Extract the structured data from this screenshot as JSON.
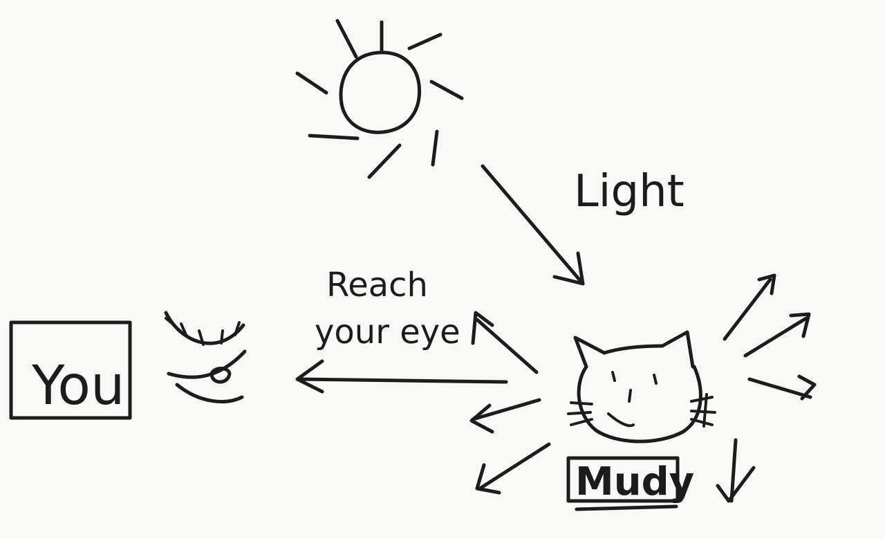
{
  "labels": {
    "light": "Light",
    "reach_line1": "Reach",
    "reach_line2": "your eye",
    "you": "You",
    "cat_name": "Mudy"
  },
  "colors": {
    "ink": "#1c1c1c",
    "paper": "#f8f8f6"
  },
  "icons": {
    "sun": "sun-icon",
    "eye": "eye-icon",
    "cat": "cat-face-icon"
  }
}
